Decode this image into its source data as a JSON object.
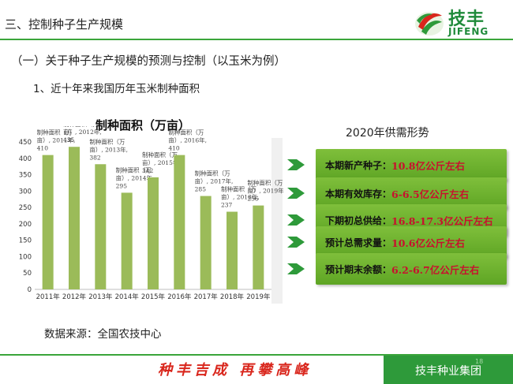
{
  "header": {
    "title": "三、控制种子生产规模",
    "logo_text": "技丰",
    "logo_en": "JIFENG"
  },
  "section_title": "（一）关于种子生产规模的预测与控制（以玉米为例）",
  "subsection_title": "1、近十年来我国历年玉米制种面积",
  "chart_data": {
    "type": "bar",
    "title": "制种面积（万亩）",
    "categories": [
      "2011年",
      "2012年",
      "2013年",
      "2014年",
      "2015年",
      "2016年",
      "2017年",
      "2018年",
      "2019年"
    ],
    "values": [
      410,
      435,
      382,
      295,
      342,
      410,
      285,
      237,
      256
    ],
    "ylim": [
      0,
      450
    ],
    "yticks": [
      0,
      50,
      100,
      150,
      200,
      250,
      300,
      350,
      400,
      450
    ],
    "grid": false,
    "bar_color": "#9bbb59",
    "data_labels": [
      {
        "line1": "制种面积（万",
        "line2": "亩）, 2011年,",
        "line3": "410"
      },
      {
        "line1": "制种面积（万",
        "line2": "亩）, 2012年,",
        "line3": "435"
      },
      {
        "line1": "制种面积（万",
        "line2": "亩）, 2013年,",
        "line3": "382"
      },
      {
        "line1": "制种面积（万",
        "line2": "亩）, 2014年,",
        "line3": "295"
      },
      {
        "line1": "制种面积（万",
        "line2": "亩）, 2015年,",
        "line3": "342"
      },
      {
        "line1": "制种面积（万",
        "line2": "亩）, 2016年,",
        "line3": "410"
      },
      {
        "line1": "制种面积（万",
        "line2": "亩）, 2017年,",
        "line3": "285"
      },
      {
        "line1": "制种面积（万",
        "line2": "亩）, 2018年,",
        "line3": "237"
      },
      {
        "line1": "制种面积（万",
        "line2": "亩）, 2019年,",
        "line3": "256"
      }
    ]
  },
  "source_note": "数据来源：全国农技中心",
  "supply_demand": {
    "title": "2020年供需形势",
    "items": [
      {
        "label": "本期新产种子：",
        "value": "10.8亿公斤左右"
      },
      {
        "label": "本期有效库存：",
        "value": "6-6.5亿公斤左右"
      },
      {
        "label": "下期初总供给：",
        "value": "16.8-17.3亿公斤左右"
      },
      {
        "label": "预计总需求量：",
        "value": "10.6亿公斤左右"
      },
      {
        "label": "预计期末余额：",
        "value": "6.2-6.7亿公斤左右"
      }
    ]
  },
  "footer": {
    "slogan": "种丰吉成  再攀高峰",
    "company": "技丰种业集团",
    "page_number": "18"
  },
  "colors": {
    "brand_green": "#2e9a3a",
    "box_green": "#6aad2c",
    "value_red": "#c8102e",
    "slogan_red": "#d9261c"
  }
}
